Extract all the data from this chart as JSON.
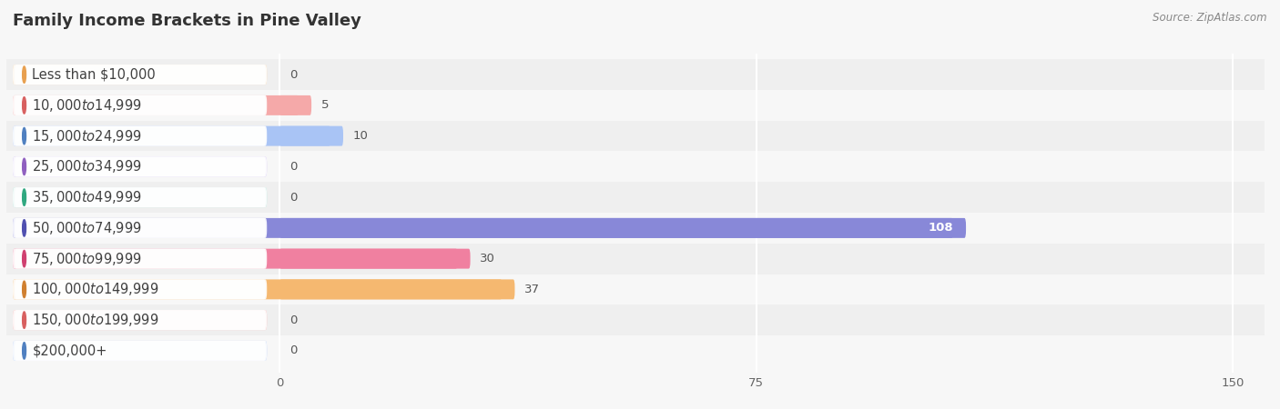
{
  "title": "Family Income Brackets in Pine Valley",
  "source": "Source: ZipAtlas.com",
  "categories": [
    "Less than $10,000",
    "$10,000 to $14,999",
    "$15,000 to $24,999",
    "$25,000 to $34,999",
    "$35,000 to $49,999",
    "$50,000 to $74,999",
    "$75,000 to $99,999",
    "$100,000 to $149,999",
    "$150,000 to $199,999",
    "$200,000+"
  ],
  "values": [
    0,
    5,
    10,
    0,
    0,
    108,
    30,
    37,
    0,
    0
  ],
  "bar_colors": [
    "#f5cfa0",
    "#f5a9a9",
    "#a9c4f5",
    "#c9b8f0",
    "#a0ddd0",
    "#8888d8",
    "#f080a0",
    "#f5b870",
    "#f5a9a9",
    "#a9c4f5"
  ],
  "icon_colors": [
    "#e8a050",
    "#d86060",
    "#5080c0",
    "#9060c0",
    "#30a880",
    "#5050b0",
    "#d04070",
    "#d08030",
    "#d86060",
    "#5080c0"
  ],
  "data_min": 0,
  "data_max": 150,
  "xticks": [
    0,
    75,
    150
  ],
  "background_color": "#f7f7f7",
  "row_colors": [
    "#efefef",
    "#f7f7f7"
  ],
  "title_fontsize": 13,
  "label_fontsize": 10.5,
  "value_fontsize": 9.5,
  "source_fontsize": 8.5
}
